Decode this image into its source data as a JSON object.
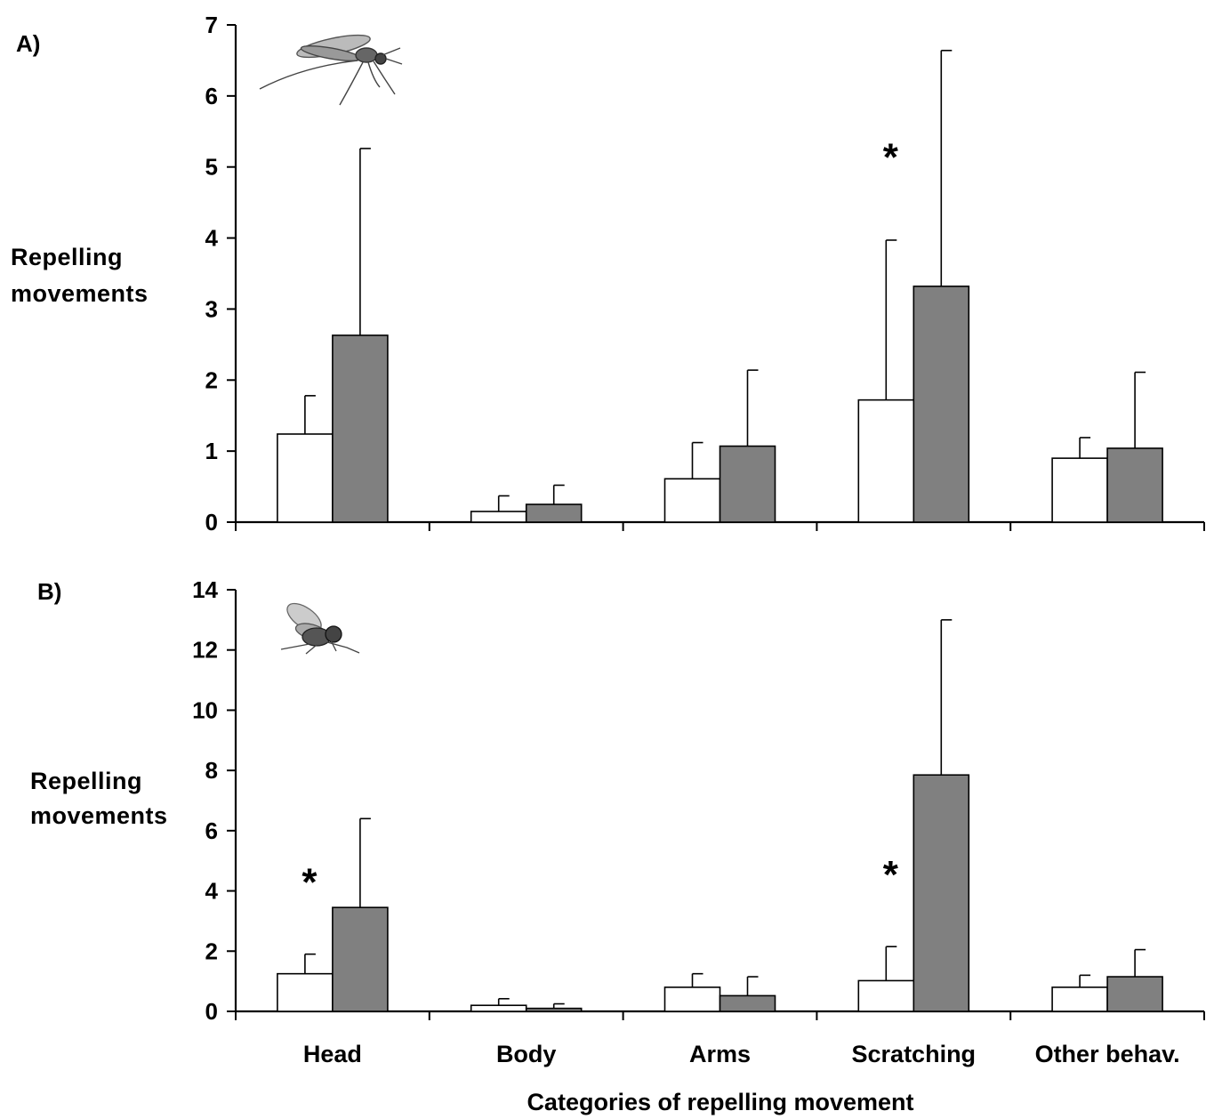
{
  "figure": {
    "xlabel": "Categories of repelling movement",
    "categories": [
      "Head",
      "Body",
      "Arms",
      "Scratching",
      "Other behav."
    ],
    "colors": {
      "series1_fill": "#ffffff",
      "series2_fill": "#808080",
      "stroke": "#000000"
    }
  },
  "chart_data": [
    {
      "type": "bar",
      "panel_label": "A)",
      "ylabel": [
        "Repelling",
        "movements"
      ],
      "ylim": [
        0,
        7
      ],
      "yticks": [
        0,
        1,
        2,
        3,
        4,
        5,
        6,
        7
      ],
      "categories": [
        "Head",
        "Body",
        "Arms",
        "Scratching",
        "Other behav."
      ],
      "series": [
        {
          "values": [
            1.24,
            0.15,
            0.61,
            1.72,
            0.9
          ],
          "error": [
            0.54,
            0.22,
            0.51,
            2.25,
            0.29
          ],
          "color": "#ffffff"
        },
        {
          "values": [
            2.63,
            0.25,
            1.07,
            3.32,
            1.04
          ],
          "error": [
            2.63,
            0.27,
            1.07,
            3.32,
            1.07
          ],
          "color": "#808080"
        }
      ],
      "annotations": [
        {
          "text": "*",
          "category": "Scratching"
        }
      ],
      "icon": "mosquito-icon"
    },
    {
      "type": "bar",
      "panel_label": "B)",
      "ylabel": [
        "Repelling",
        "movements"
      ],
      "ylim": [
        0,
        14
      ],
      "yticks": [
        0,
        2,
        4,
        6,
        8,
        10,
        12,
        14
      ],
      "categories": [
        "Head",
        "Body",
        "Arms",
        "Scratching",
        "Other behav."
      ],
      "series": [
        {
          "values": [
            1.25,
            0.2,
            0.8,
            1.02,
            0.8
          ],
          "error": [
            0.65,
            0.22,
            0.45,
            1.13,
            0.4
          ],
          "color": "#ffffff"
        },
        {
          "values": [
            3.45,
            0.1,
            0.52,
            7.85,
            1.15
          ],
          "error": [
            2.95,
            0.15,
            0.63,
            5.15,
            0.9
          ],
          "color": "#808080"
        }
      ],
      "annotations": [
        {
          "text": "*",
          "category": "Head"
        },
        {
          "text": "*",
          "category": "Scratching"
        }
      ],
      "icon": "fly-icon"
    }
  ]
}
